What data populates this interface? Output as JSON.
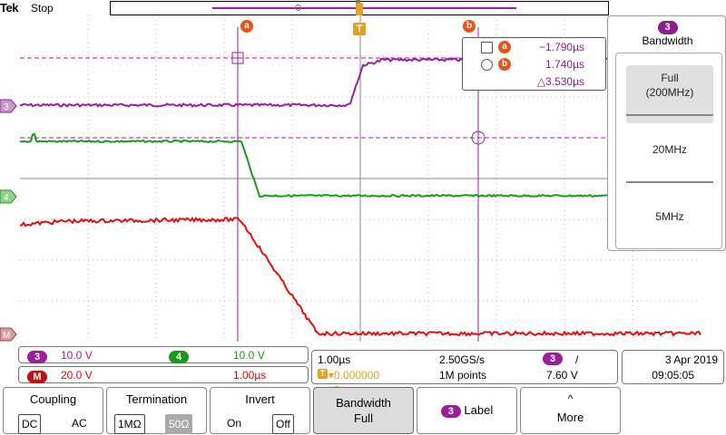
{
  "header": {
    "brand": "Tek",
    "mode": "Stop"
  },
  "markers": {
    "cursor_a_label": "a",
    "cursor_b_label": "b",
    "trigger_label": "T",
    "ch3_label": "3",
    "ch4_label": "4",
    "math_label": "M"
  },
  "cursor_readout": {
    "a_value": "−1.790µs",
    "b_value": "1.740µs",
    "delta_value": "△3.530µs"
  },
  "side_menu": {
    "channel": "3",
    "title": "Bandwidth",
    "options": [
      "Full",
      "(200MHz)",
      "20MHz",
      "5MHz"
    ]
  },
  "channel_status": {
    "ch3": "3",
    "ch3_scale": "10.0 V",
    "ch4": "4",
    "ch4_scale": "10.0 V",
    "math": "M",
    "math_scale": "20.0 V",
    "math_time": "1.00µs"
  },
  "horizontal": {
    "time_per_div": "1.00µs",
    "sample_rate": "2.50GS/s",
    "trigger_symbol": "T",
    "trigger_position": "0.000000 s",
    "record_length": "1M points",
    "trigger_source": "3",
    "trigger_slope": "/",
    "trigger_level": "7.60 V"
  },
  "datetime": {
    "date": "3 Apr  2019",
    "time": "09:05:05"
  },
  "bottom_menu": {
    "coupling": {
      "label": "Coupling",
      "opt1": "DC",
      "opt2": "AC"
    },
    "termination": {
      "label": "Termination",
      "opt1": "1MΩ",
      "opt2": "50Ω"
    },
    "invert": {
      "label": "Invert",
      "opt1": "On",
      "opt2": "Off"
    },
    "bandwidth": {
      "label": "Bandwidth",
      "value": "Full"
    },
    "label_btn": {
      "channel": "3",
      "label": "Label"
    },
    "more": {
      "arrow": "^",
      "label": "More"
    }
  },
  "colors": {
    "ch3": "#9b1f9b",
    "ch4": "#1a9a1a",
    "math": "#e01010",
    "cursor": "#9b1f9b",
    "badge": "#e8531c",
    "trigger": "#e8a020",
    "grid": "#b8b8b8"
  },
  "icons": [
    "cursor-a-marker-icon",
    "cursor-b-marker-icon",
    "trigger-marker-icon",
    "square-symbol-icon",
    "circle-symbol-icon",
    "chevron-up-icon"
  ]
}
